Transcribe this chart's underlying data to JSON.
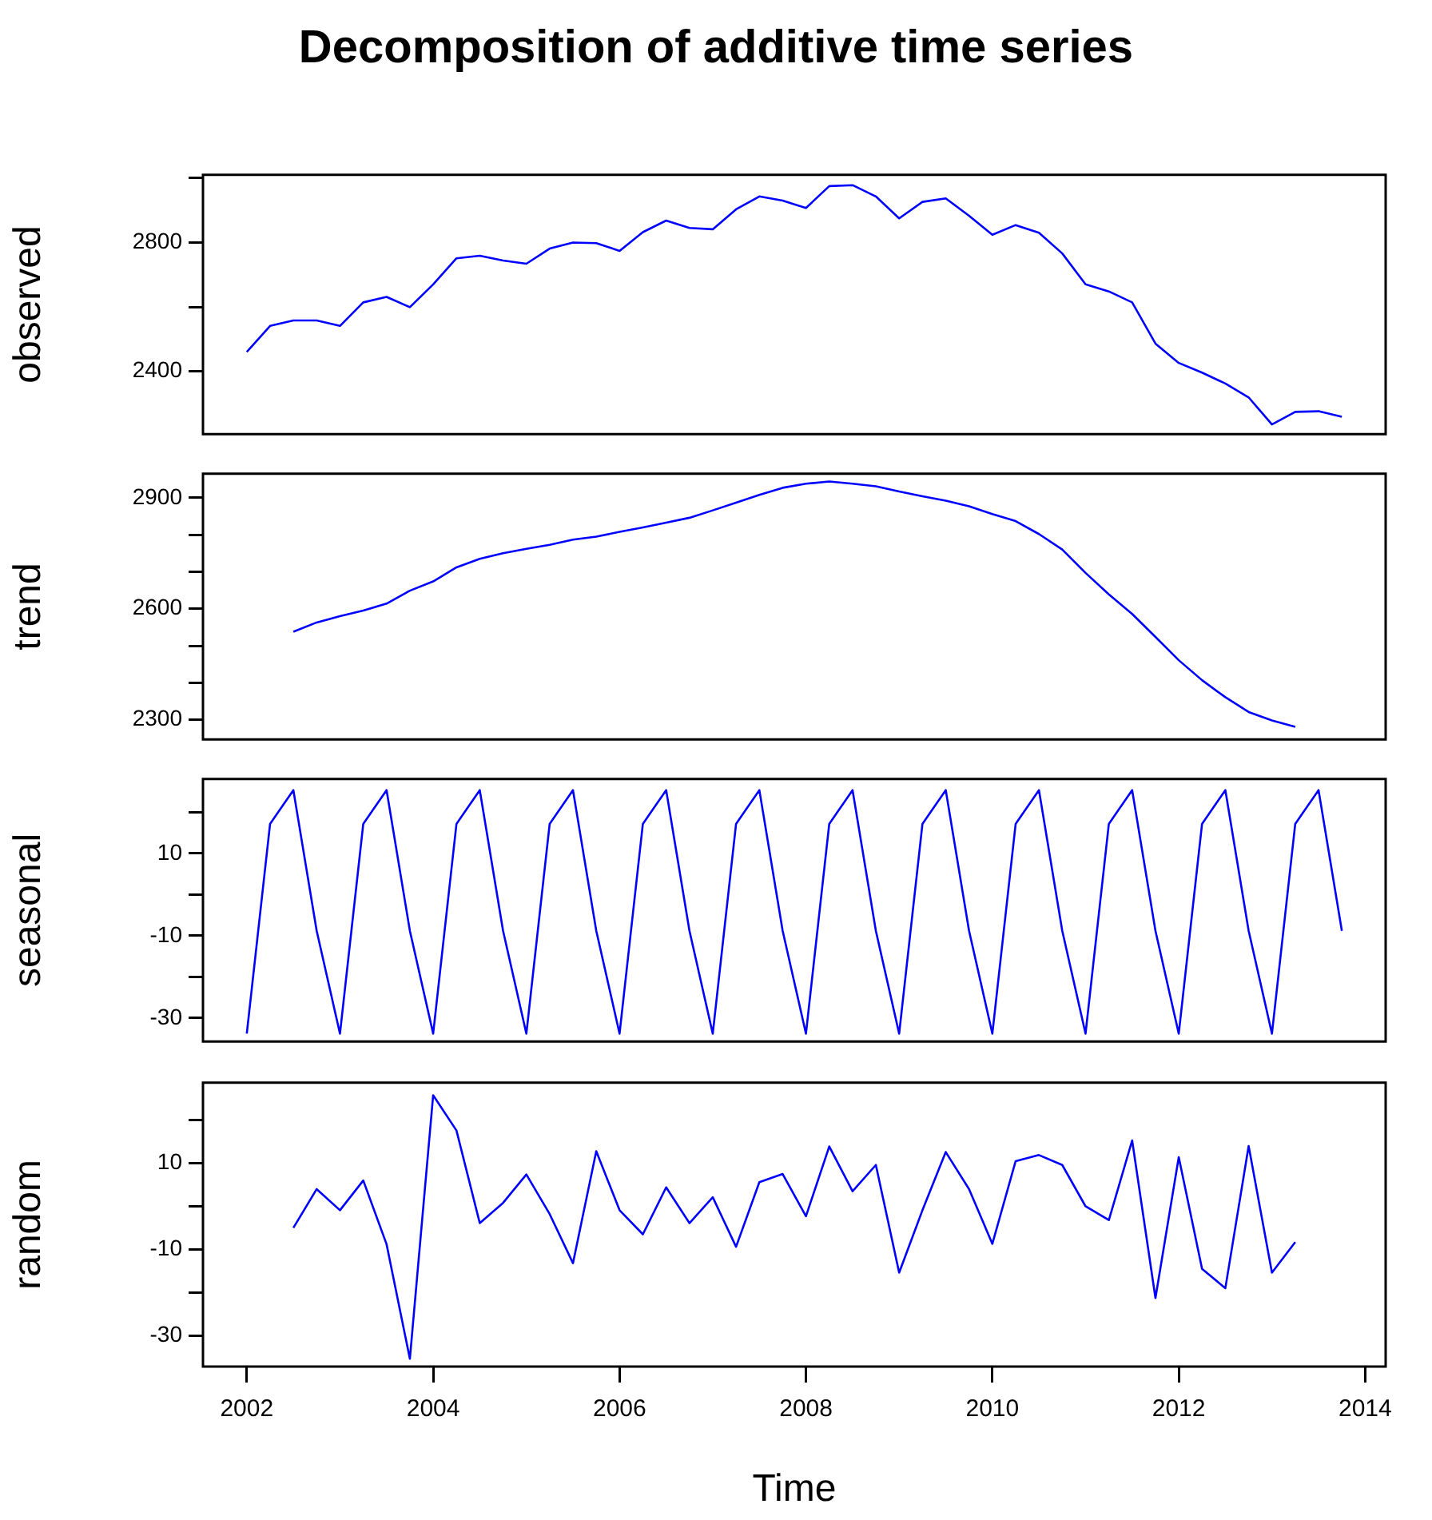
{
  "chart_data": [
    {
      "type": "line",
      "title": "Decomposition of additive time series",
      "ylabel": "observed",
      "color": "#0000ff",
      "tick_labels": "y",
      "x": [
        2002,
        2002.25,
        2002.5,
        2002.75,
        2003,
        2003.25,
        2003.5,
        2003.75,
        2004,
        2004.25,
        2004.5,
        2004.75,
        2005,
        2005.25,
        2005.5,
        2005.75,
        2006,
        2006.25,
        2006.5,
        2006.75,
        2007,
        2007.25,
        2007.5,
        2007.75,
        2008,
        2008.25,
        2008.5,
        2008.75,
        2009,
        2009.25,
        2009.5,
        2009.75,
        2010,
        2010.25,
        2010.5,
        2010.75,
        2011,
        2011.25,
        2011.5,
        2011.75,
        2012,
        2012.25,
        2012.5,
        2012.75,
        2013,
        2013.25,
        2013.5,
        2013.75
      ],
      "values": [
        2460,
        2541,
        2558,
        2558,
        2541,
        2614,
        2631,
        2599,
        2670,
        2751,
        2759,
        2744,
        2734,
        2781,
        2800,
        2798,
        2774,
        2832,
        2868,
        2845,
        2841,
        2903,
        2943,
        2930,
        2907,
        2975,
        2978,
        2943,
        2875,
        2926,
        2937,
        2883,
        2824,
        2854,
        2830,
        2766,
        2670,
        2648,
        2614,
        2486,
        2426,
        2396,
        2362,
        2319,
        2235,
        2274,
        2276,
        2259
      ],
      "xlim": [
        2001.53,
        2014.22
      ],
      "ylim": [
        2205,
        3010
      ],
      "yticks": [
        {
          "value": 2400,
          "label": "2400"
        },
        {
          "value": 2600,
          "label": null
        },
        {
          "value": 2800,
          "label": "2800"
        },
        {
          "value": 3000,
          "label": null
        }
      ]
    },
    {
      "type": "line",
      "ylabel": "trend",
      "color": "#0000ff",
      "tick_labels": "y",
      "x": [
        2002.5,
        2002.75,
        2003,
        2003.25,
        2003.5,
        2003.75,
        2004,
        2004.25,
        2004.5,
        2004.75,
        2005,
        2005.25,
        2005.5,
        2005.75,
        2006,
        2006.25,
        2006.5,
        2006.75,
        2007,
        2007.25,
        2007.5,
        2007.75,
        2008,
        2008.25,
        2008.5,
        2008.75,
        2009,
        2009.25,
        2009.5,
        2009.75,
        2010,
        2010.25,
        2010.5,
        2010.75,
        2011,
        2011.25,
        2011.5,
        2011.75,
        2012,
        2012.25,
        2012.5,
        2012.75,
        2013,
        2013.25
      ],
      "values": [
        2538,
        2563,
        2580,
        2595,
        2614,
        2649,
        2674,
        2712,
        2735,
        2750,
        2762,
        2773,
        2787,
        2795,
        2808,
        2820,
        2833,
        2846,
        2866,
        2887,
        2908,
        2927,
        2938,
        2944,
        2938,
        2931,
        2917,
        2904,
        2892,
        2877,
        2856,
        2837,
        2802,
        2760,
        2697,
        2639,
        2586,
        2524,
        2461,
        2407,
        2361,
        2321,
        2298,
        2281
      ],
      "xlim": [
        2001.53,
        2014.22
      ],
      "ylim": [
        2247,
        2965
      ],
      "yticks": [
        {
          "value": 2300,
          "label": "2300"
        },
        {
          "value": 2400,
          "label": null
        },
        {
          "value": 2500,
          "label": null
        },
        {
          "value": 2600,
          "label": "2600"
        },
        {
          "value": 2700,
          "label": null
        },
        {
          "value": 2800,
          "label": null
        },
        {
          "value": 2900,
          "label": "2900"
        }
      ]
    },
    {
      "type": "line",
      "ylabel": "seasonal",
      "color": "#0000ff",
      "tick_labels": "y",
      "x": [
        2002,
        2002.25,
        2002.5,
        2002.75,
        2003,
        2003.25,
        2003.5,
        2003.75,
        2004,
        2004.25,
        2004.5,
        2004.75,
        2005,
        2005.25,
        2005.5,
        2005.75,
        2006,
        2006.25,
        2006.5,
        2006.75,
        2007,
        2007.25,
        2007.5,
        2007.75,
        2008,
        2008.25,
        2008.5,
        2008.75,
        2009,
        2009.25,
        2009.5,
        2009.75,
        2010,
        2010.25,
        2010.5,
        2010.75,
        2011,
        2011.25,
        2011.5,
        2011.75,
        2012,
        2012.25,
        2012.5,
        2012.75,
        2013,
        2013.25,
        2013.5,
        2013.75
      ],
      "values": [
        -33.8,
        17.2,
        25.4,
        -8.8,
        -33.8,
        17.2,
        25.4,
        -8.8,
        -33.8,
        17.2,
        25.4,
        -8.8,
        -33.8,
        17.2,
        25.4,
        -8.8,
        -33.8,
        17.2,
        25.4,
        -8.8,
        -33.8,
        17.2,
        25.4,
        -8.8,
        -33.8,
        17.2,
        25.4,
        -8.8,
        -33.8,
        17.2,
        25.4,
        -8.8,
        -33.8,
        17.2,
        25.4,
        -8.8,
        -33.8,
        17.2,
        25.4,
        -8.8,
        -33.8,
        17.2,
        25.4,
        -8.8,
        -33.8,
        17.2,
        25.4,
        -8.8
      ],
      "xlim": [
        2001.53,
        2014.22
      ],
      "ylim": [
        -35.7,
        28.1
      ],
      "yticks": [
        {
          "value": -30,
          "label": "-30"
        },
        {
          "value": -20,
          "label": null
        },
        {
          "value": -10,
          "label": "-10"
        },
        {
          "value": 0,
          "label": null
        },
        {
          "value": 10,
          "label": "10"
        },
        {
          "value": 20,
          "label": null
        }
      ]
    },
    {
      "type": "line",
      "ylabel": "random",
      "xlabel": "Time",
      "color": "#0000ff",
      "x": [
        2002.5,
        2002.75,
        2003,
        2003.25,
        2003.5,
        2003.75,
        2004,
        2004.25,
        2004.5,
        2004.75,
        2005,
        2005.25,
        2005.5,
        2005.75,
        2006,
        2006.25,
        2006.5,
        2006.75,
        2007,
        2007.25,
        2007.5,
        2007.75,
        2008,
        2008.25,
        2008.5,
        2008.75,
        2009,
        2009.25,
        2009.5,
        2009.75,
        2010,
        2010.25,
        2010.5,
        2010.75,
        2011,
        2011.25,
        2011.5,
        2011.75,
        2012,
        2012.25,
        2012.5,
        2012.75,
        2013,
        2013.25
      ],
      "values": [
        -5.0,
        4.0,
        -0.9,
        6.0,
        -8.8,
        -35.4,
        25.8,
        17.6,
        -3.9,
        0.8,
        7.4,
        -1.8,
        -13.2,
        12.8,
        -0.9,
        -6.5,
        4.4,
        -3.9,
        2.1,
        -9.4,
        5.6,
        7.5,
        -2.3,
        13.9,
        3.5,
        9.6,
        -15.4,
        -0.9,
        12.6,
        4.0,
        -8.7,
        10.5,
        11.9,
        9.6,
        0,
        -3.2,
        15.3,
        -21.3,
        11.4,
        -14.5,
        -19.0,
        14.0,
        -15.4,
        -8.3
      ],
      "xlim": [
        2001.53,
        2014.22
      ],
      "ylim": [
        -37.2,
        28.7
      ],
      "xticks": [
        2002,
        2004,
        2006,
        2008,
        2010,
        2012,
        2014
      ],
      "yticks": [
        {
          "value": -30,
          "label": "-30"
        },
        {
          "value": -20,
          "label": null
        },
        {
          "value": -10,
          "label": "-10"
        },
        {
          "value": 0,
          "label": null
        },
        {
          "value": 10,
          "label": "10"
        },
        {
          "value": 20,
          "label": null
        }
      ]
    }
  ]
}
